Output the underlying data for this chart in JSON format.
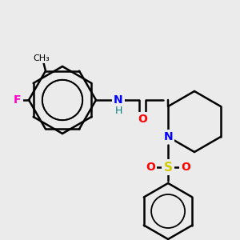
{
  "bg_color": "#ebebeb",
  "bond_color": "#000000",
  "atom_colors": {
    "O": "#ff0000",
    "N": "#0000ff",
    "F": "#ff00cc",
    "S": "#cccc00",
    "C": "#000000",
    "H": "#008080"
  },
  "figsize": [
    3.0,
    3.0
  ],
  "dpi": 100
}
